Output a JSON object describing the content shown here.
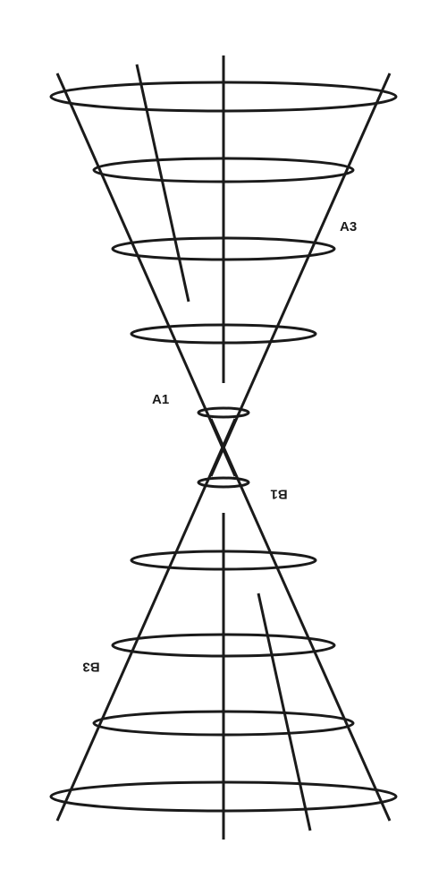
{
  "labels": {
    "a1": "A1",
    "a3": "A3",
    "b1": "B1",
    "b3": "B3"
  },
  "colors": {
    "stroke": "#1a1a1a",
    "background": "#ffffff"
  }
}
